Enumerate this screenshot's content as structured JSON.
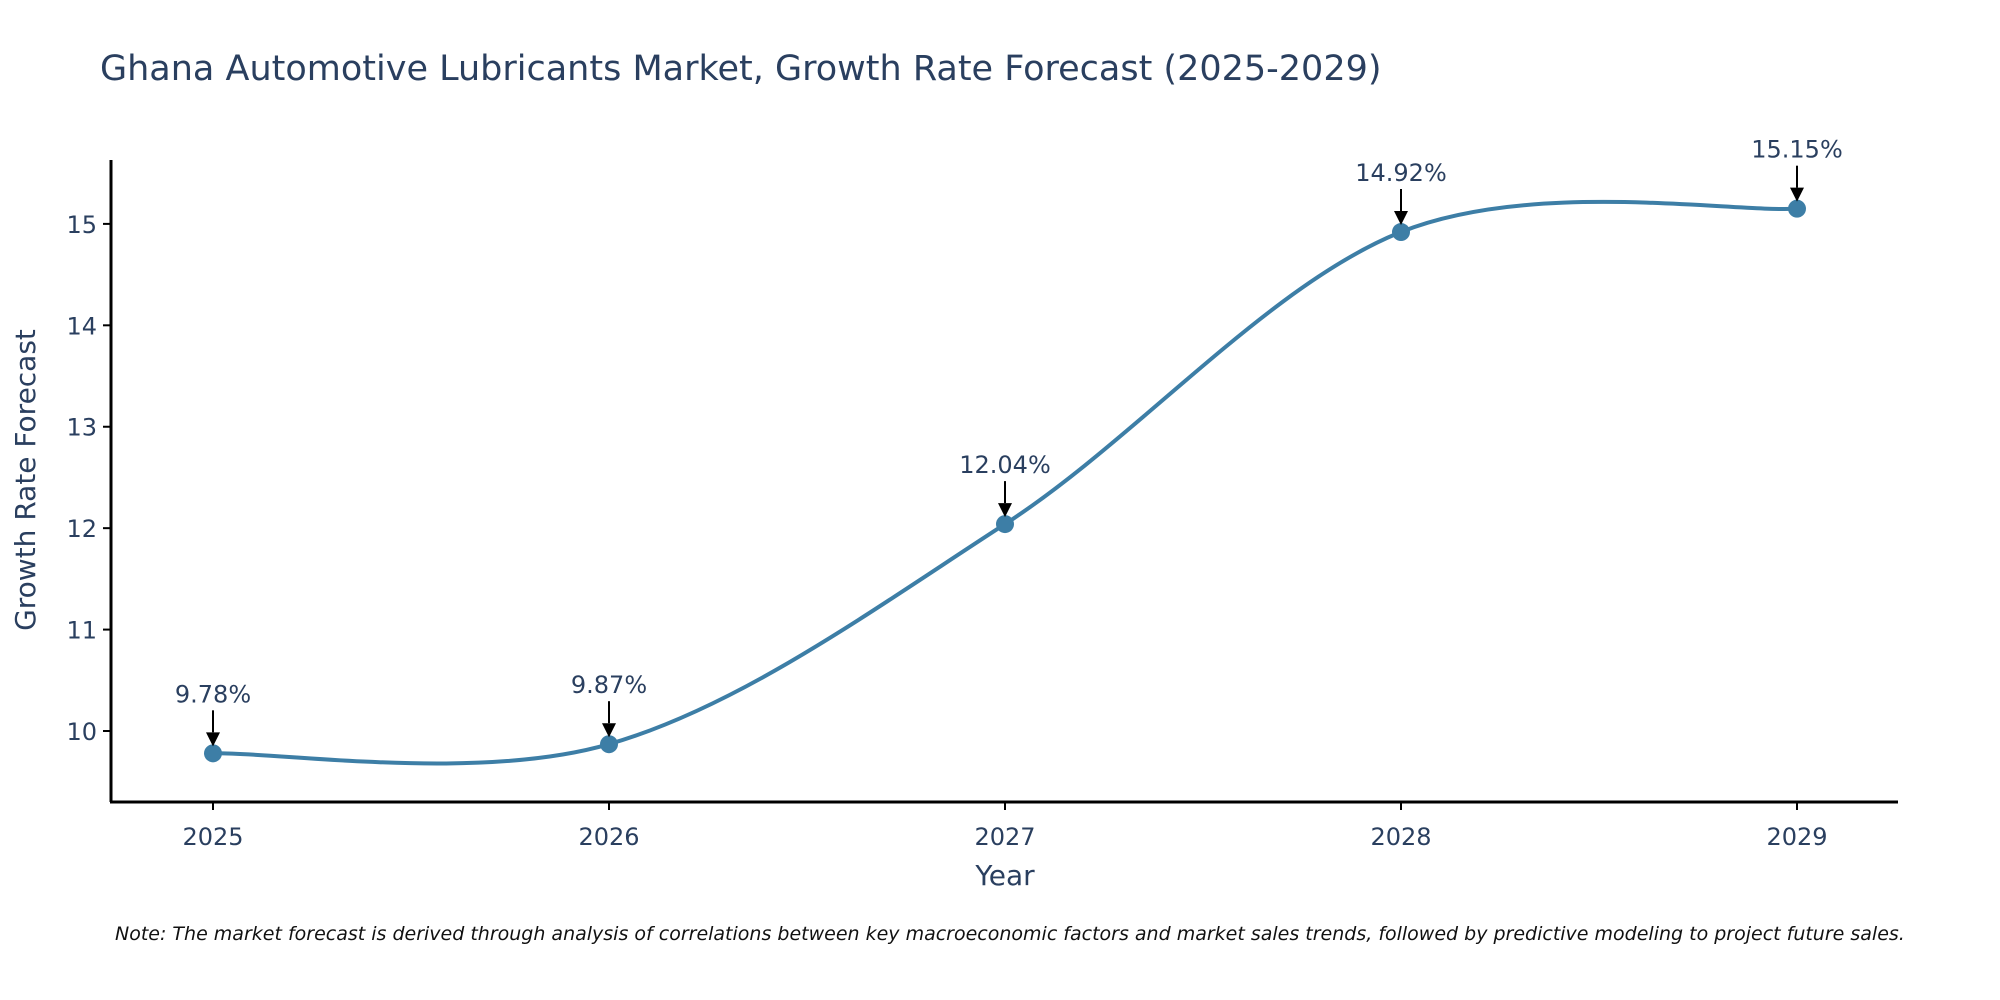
{
  "chart_data": {
    "type": "line",
    "title": "Ghana Automotive Lubricants Market, Growth Rate Forecast (2025-2029)",
    "xlabel": "Year",
    "ylabel": "Growth Rate Forecast",
    "categories": [
      "2025",
      "2026",
      "2027",
      "2028",
      "2029"
    ],
    "values": [
      9.78,
      9.87,
      12.04,
      14.92,
      15.15
    ],
    "data_labels": [
      "9.78%",
      "9.87%",
      "12.04%",
      "14.92%",
      "15.15%"
    ],
    "y_ticks": [
      10,
      11,
      12,
      13,
      14,
      15
    ],
    "y_tick_labels": [
      "10",
      "11",
      "12",
      "13",
      "14",
      "15"
    ],
    "ylim": [
      9.3,
      15.63
    ],
    "grid": false,
    "legend": "none",
    "line_shape": "spline",
    "series_color": "#3d7ea6",
    "note": "Note: The market forecast is derived through analysis of correlations between key macroeconomic factors and market sales trends, followed by predictive modeling to project future sales."
  }
}
